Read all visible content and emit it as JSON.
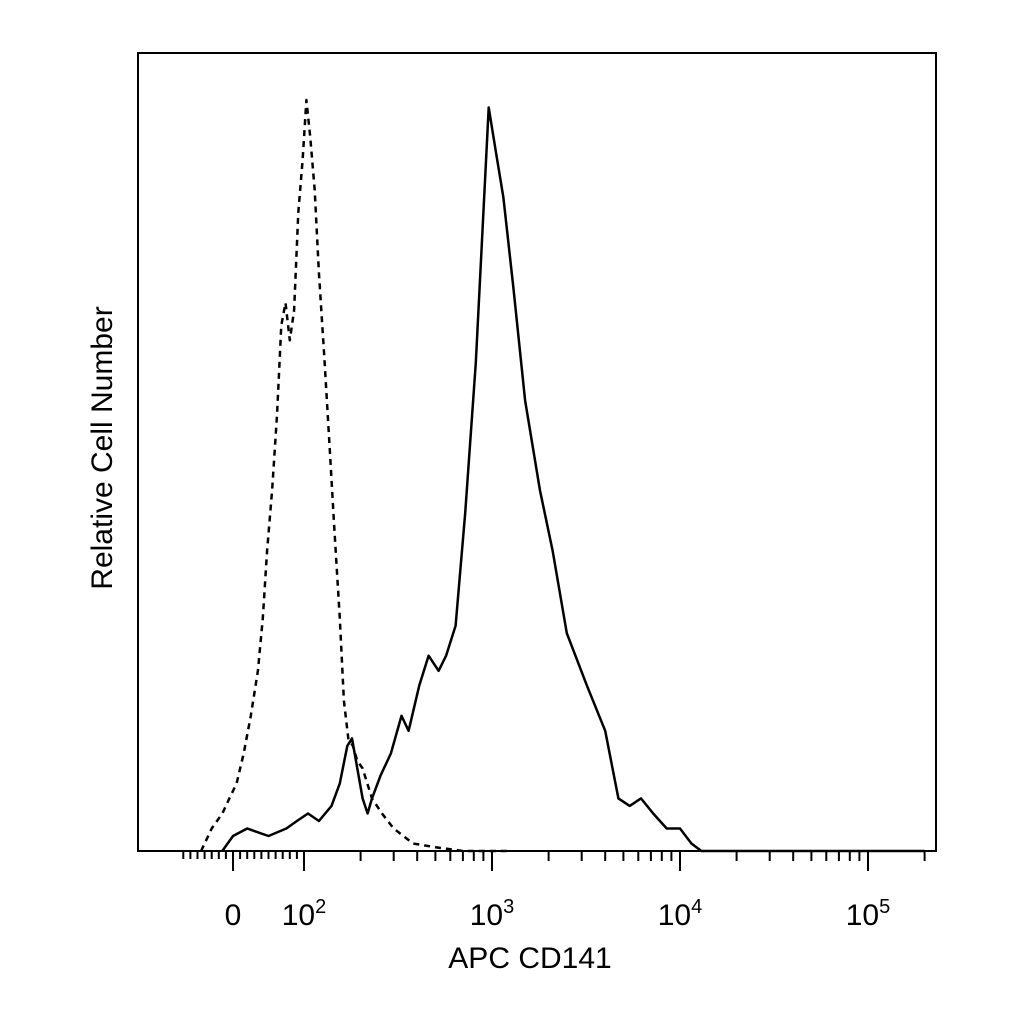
{
  "chart_data": {
    "type": "line",
    "title": "",
    "xlabel": "APC CD141",
    "ylabel": "Relative Cell Number",
    "x_scale": "biexponential",
    "xlim": [
      -70,
      250000
    ],
    "ylim": [
      0,
      100
    ],
    "grid": false,
    "legend": "none",
    "x_tick_labels": [
      {
        "value": 0,
        "base": "0",
        "exp": ""
      },
      {
        "value": 100,
        "base": "10",
        "exp": "2"
      },
      {
        "value": 1000,
        "base": "10",
        "exp": "3"
      },
      {
        "value": 10000,
        "base": "10",
        "exp": "4"
      },
      {
        "value": 100000,
        "base": "10",
        "exp": "5"
      }
    ],
    "series": [
      {
        "style": "dashed",
        "color": "#000000",
        "points": [
          [
            -45,
            0
          ],
          [
            -30,
            3
          ],
          [
            -15,
            5
          ],
          [
            -5,
            7
          ],
          [
            5,
            9
          ],
          [
            15,
            13
          ],
          [
            25,
            18
          ],
          [
            35,
            24
          ],
          [
            42,
            31
          ],
          [
            48,
            40
          ],
          [
            55,
            48
          ],
          [
            62,
            58
          ],
          [
            68,
            70
          ],
          [
            74,
            73
          ],
          [
            80,
            68
          ],
          [
            86,
            72
          ],
          [
            92,
            85
          ],
          [
            98,
            92
          ],
          [
            103,
            100
          ],
          [
            108,
            95
          ],
          [
            114,
            88
          ],
          [
            120,
            77
          ],
          [
            128,
            66
          ],
          [
            136,
            55
          ],
          [
            145,
            43
          ],
          [
            155,
            31
          ],
          [
            163,
            20
          ],
          [
            172,
            15
          ],
          [
            182,
            14
          ],
          [
            192,
            12
          ],
          [
            205,
            11
          ],
          [
            230,
            7
          ],
          [
            260,
            5
          ],
          [
            300,
            3
          ],
          [
            380,
            1
          ],
          [
            500,
            0.5
          ],
          [
            700,
            0
          ],
          [
            1200,
            0
          ]
        ]
      },
      {
        "style": "solid",
        "color": "#000000",
        "points": [
          [
            -15,
            0
          ],
          [
            0,
            2
          ],
          [
            20,
            3
          ],
          [
            50,
            2
          ],
          [
            75,
            3
          ],
          [
            90,
            4
          ],
          [
            105,
            5
          ],
          [
            120,
            4
          ],
          [
            140,
            6
          ],
          [
            155,
            9
          ],
          [
            170,
            14
          ],
          [
            180,
            15
          ],
          [
            192,
            11
          ],
          [
            205,
            7
          ],
          [
            218,
            5
          ],
          [
            230,
            7
          ],
          [
            255,
            10
          ],
          [
            290,
            13
          ],
          [
            330,
            18
          ],
          [
            360,
            16
          ],
          [
            410,
            22
          ],
          [
            460,
            26
          ],
          [
            520,
            24
          ],
          [
            570,
            26
          ],
          [
            640,
            30
          ],
          [
            720,
            45
          ],
          [
            820,
            65
          ],
          [
            900,
            85
          ],
          [
            960,
            99
          ],
          [
            1050,
            93
          ],
          [
            1150,
            87
          ],
          [
            1300,
            75
          ],
          [
            1500,
            60
          ],
          [
            1800,
            48
          ],
          [
            2100,
            40
          ],
          [
            2500,
            29
          ],
          [
            3200,
            22
          ],
          [
            4000,
            16
          ],
          [
            4700,
            7
          ],
          [
            5400,
            6
          ],
          [
            6200,
            7
          ],
          [
            7200,
            5
          ],
          [
            8500,
            3
          ],
          [
            10000,
            3
          ],
          [
            11500,
            1
          ],
          [
            13000,
            0
          ],
          [
            200000,
            0
          ]
        ]
      }
    ]
  }
}
